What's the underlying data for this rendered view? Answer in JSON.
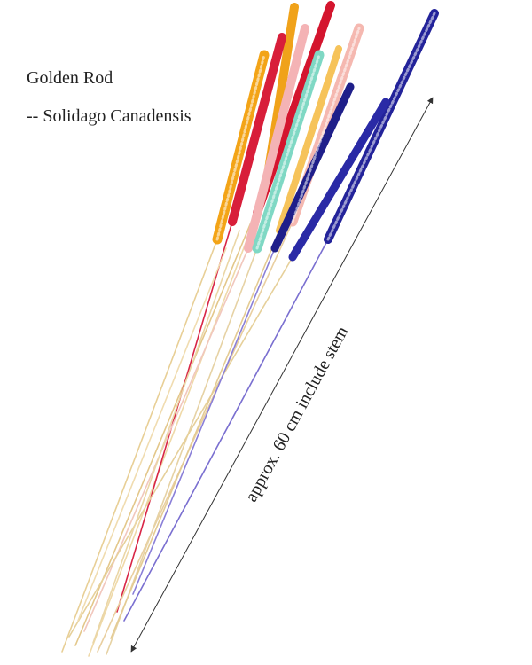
{
  "header": {
    "title": "Golden Rod",
    "subtitle": "-- Solidago Canadensis"
  },
  "annotation": {
    "size_note": "approx. 60 cm include stem"
  }
}
